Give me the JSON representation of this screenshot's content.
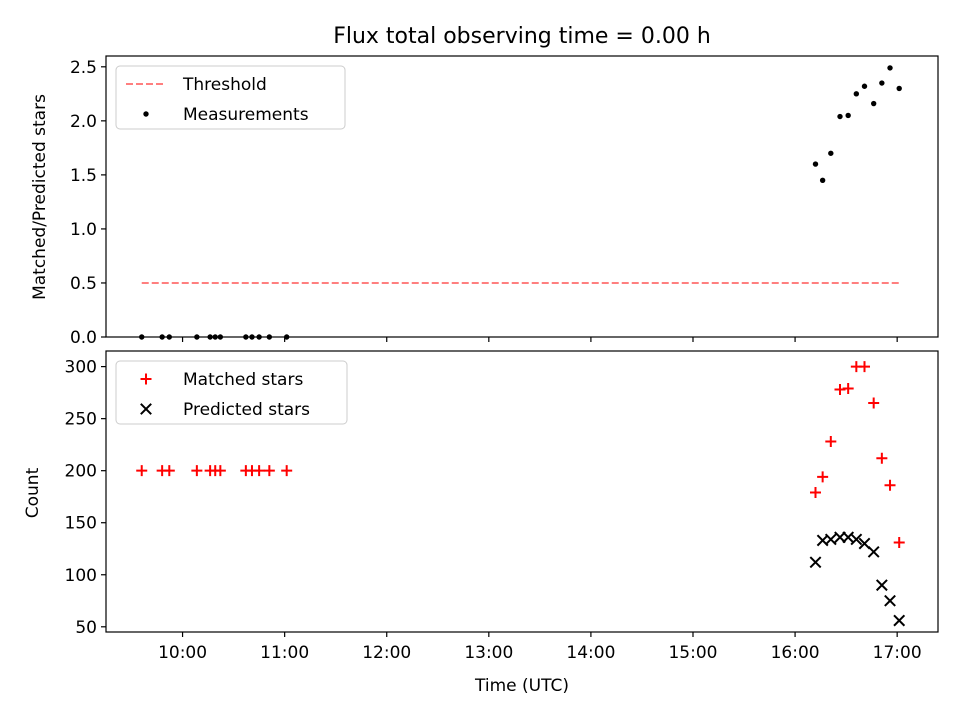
{
  "chart_data": {
    "title": "Flux total observing time = 0.00 h",
    "xlabel": "Time (UTC)",
    "xlim": [
      9.25,
      17.4
    ],
    "xticks": [
      {
        "value": 10,
        "label": "10:00"
      },
      {
        "value": 11,
        "label": "11:00"
      },
      {
        "value": 12,
        "label": "12:00"
      },
      {
        "value": 13,
        "label": "13:00"
      },
      {
        "value": 14,
        "label": "14:00"
      },
      {
        "value": 15,
        "label": "15:00"
      },
      {
        "value": 16,
        "label": "16:00"
      },
      {
        "value": 17,
        "label": "17:00"
      }
    ],
    "panels": [
      {
        "type": "scatter",
        "ylabel": "Matched/Predicted stars",
        "ylim": [
          0,
          2.6
        ],
        "yticks": [
          {
            "value": 0.0,
            "label": "0.0"
          },
          {
            "value": 0.5,
            "label": "0.5"
          },
          {
            "value": 1.0,
            "label": "1.0"
          },
          {
            "value": 1.5,
            "label": "1.5"
          },
          {
            "value": 2.0,
            "label": "2.0"
          },
          {
            "value": 2.5,
            "label": "2.5"
          }
        ],
        "legend_position": "top-left",
        "series": [
          {
            "name": "Threshold",
            "kind": "dashed-line",
            "color": "#ff7f7f",
            "x": [
              9.6,
              17.03
            ],
            "y": [
              0.5,
              0.5
            ]
          },
          {
            "name": "Measurements",
            "kind": "dot",
            "color": "#000000",
            "x": [
              9.6,
              9.8,
              9.87,
              10.14,
              10.27,
              10.32,
              10.37,
              10.62,
              10.68,
              10.75,
              10.85,
              11.02,
              16.2,
              16.27,
              16.35,
              16.44,
              16.52,
              16.6,
              16.68,
              16.77,
              16.85,
              16.93,
              17.02
            ],
            "y": [
              0,
              0,
              0,
              0,
              0,
              0,
              0,
              0,
              0,
              0,
              0,
              0,
              1.6,
              1.45,
              1.7,
              2.04,
              2.05,
              2.25,
              2.32,
              2.16,
              2.35,
              2.49,
              2.3
            ]
          }
        ]
      },
      {
        "type": "scatter",
        "ylabel": "Count",
        "ylim": [
          45,
          315
        ],
        "yticks": [
          {
            "value": 50,
            "label": "50"
          },
          {
            "value": 100,
            "label": "100"
          },
          {
            "value": 150,
            "label": "150"
          },
          {
            "value": 200,
            "label": "200"
          },
          {
            "value": 250,
            "label": "250"
          },
          {
            "value": 300,
            "label": "300"
          }
        ],
        "legend_position": "top-left",
        "series": [
          {
            "name": "Matched stars",
            "kind": "plus",
            "color": "#ff0000",
            "x": [
              9.6,
              9.8,
              9.87,
              10.14,
              10.27,
              10.32,
              10.37,
              10.62,
              10.68,
              10.75,
              10.85,
              11.02,
              16.2,
              16.27,
              16.35,
              16.44,
              16.52,
              16.6,
              16.68,
              16.77,
              16.85,
              16.93,
              17.02
            ],
            "y": [
              200,
              200,
              200,
              200,
              200,
              200,
              200,
              200,
              200,
              200,
              200,
              200,
              179,
              194,
              228,
              278,
              279,
              300,
              300,
              265,
              212,
              186,
              131
            ]
          },
          {
            "name": "Predicted stars",
            "kind": "x",
            "color": "#000000",
            "x": [
              16.2,
              16.27,
              16.35,
              16.44,
              16.52,
              16.6,
              16.68,
              16.77,
              16.85,
              16.93,
              17.02
            ],
            "y": [
              112,
              133,
              134,
              136,
              136,
              134,
              130,
              122,
              90,
              75,
              56
            ]
          }
        ]
      }
    ]
  }
}
